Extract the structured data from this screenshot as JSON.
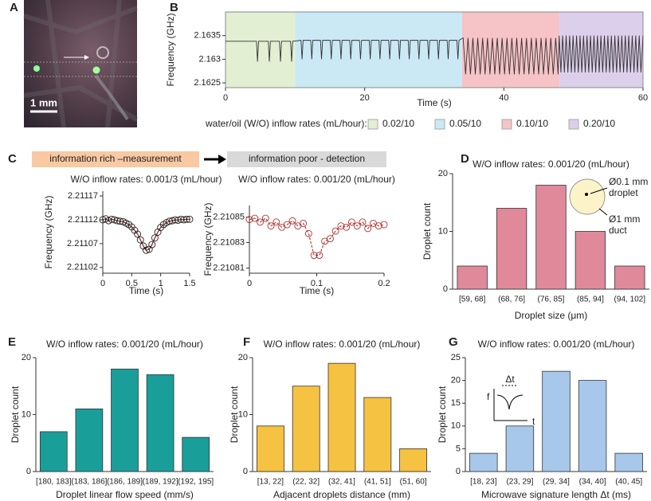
{
  "image_panel": {
    "label": "A",
    "scale_bar": "1 mm"
  },
  "panel_header": {
    "label": "C",
    "left": "information rich –measurement",
    "right": "information poor - detection"
  },
  "chart_data": [
    {
      "type": "line",
      "label": "B",
      "xlabel": "Time (s)",
      "ylabel": "Frequency (GHz)",
      "xlim": [
        0,
        60
      ],
      "xticks": [
        0,
        20,
        40,
        60
      ],
      "ylim": [
        2.1624,
        2.164
      ],
      "yticks": [
        2.1625,
        2.163,
        2.1635
      ],
      "color": "#333333",
      "legend_title": "water/oil (W/O) inflow rates (mL/hour):",
      "regions": [
        {
          "start": 0,
          "end": 10,
          "color": "#e2efd3",
          "label": "0.02/10"
        },
        {
          "start": 10,
          "end": 34,
          "color": "#cbe9f5",
          "label": "0.05/10"
        },
        {
          "start": 34,
          "end": 48,
          "color": "#f6c3c6",
          "label": "0.10/10"
        },
        {
          "start": 48,
          "end": 60,
          "color": "#dccfeb",
          "label": "0.20/10"
        }
      ],
      "x": [
        0,
        4.45,
        4.6,
        4.75,
        6.15,
        6.3,
        6.45,
        7.75,
        7.9,
        8.05,
        9.35,
        9.5,
        9.65,
        10.85,
        11,
        11.15,
        12.25,
        12.4,
        12.55,
        13.65,
        13.8,
        13.95,
        15.05,
        15.2,
        15.35,
        16.45,
        16.6,
        16.75,
        17.85,
        18,
        18.15,
        19.25,
        19.4,
        19.55,
        20.65,
        20.8,
        20.95,
        22.05,
        22.2,
        22.35,
        23.45,
        23.6,
        23.75,
        24.85,
        25,
        25.15,
        26.25,
        26.4,
        26.55,
        27.65,
        27.8,
        27.95,
        29.05,
        29.2,
        29.35,
        30.45,
        30.6,
        30.75,
        31.85,
        32,
        32.15,
        33.25,
        33.4,
        33.55,
        34.15,
        34.5,
        34.85,
        35.2,
        35.55,
        35.9,
        36.25,
        36.6,
        36.95,
        37.3,
        37.65,
        38,
        38.35,
        38.7,
        39.05,
        39.4,
        39.75,
        40.1,
        40.45,
        40.8,
        41.15,
        41.5,
        41.85,
        42.2,
        42.55,
        42.9,
        43.25,
        43.6,
        43.95,
        44.3,
        44.65,
        45,
        45.35,
        45.7,
        46.05,
        46.4,
        46.75,
        47.1,
        47.45,
        47.8,
        47.95,
        48.2,
        48.45,
        48.7,
        48.95,
        49.2,
        49.45,
        49.7,
        49.95,
        50.2,
        50.45,
        50.7,
        50.95,
        51.2,
        51.45,
        51.7,
        51.95,
        52.2,
        52.45,
        52.7,
        52.95,
        53.2,
        53.45,
        53.7,
        53.95,
        54.2,
        54.45,
        54.7,
        54.95,
        55.2,
        55.45,
        55.7,
        55.95,
        56.2,
        56.45,
        56.7,
        56.95,
        57.2,
        57.45,
        57.7,
        57.95,
        58.2,
        58.45,
        58.7,
        58.95,
        59.2,
        59.45,
        59.7,
        60
      ],
      "values": [
        2.16338,
        2.16338,
        2.16295,
        2.16338,
        2.16338,
        2.16295,
        2.16338,
        2.16338,
        2.16295,
        2.16338,
        2.16338,
        2.16295,
        2.16338,
        2.1634,
        2.163,
        2.1634,
        2.1634,
        2.163,
        2.1634,
        2.1634,
        2.163,
        2.1634,
        2.1634,
        2.163,
        2.1634,
        2.1634,
        2.163,
        2.1634,
        2.1634,
        2.163,
        2.1634,
        2.1634,
        2.163,
        2.1634,
        2.1634,
        2.163,
        2.1634,
        2.1634,
        2.163,
        2.1634,
        2.1634,
        2.163,
        2.1634,
        2.1634,
        2.163,
        2.1634,
        2.1634,
        2.163,
        2.1634,
        2.1634,
        2.163,
        2.1634,
        2.1634,
        2.163,
        2.1634,
        2.1634,
        2.163,
        2.1634,
        2.1634,
        2.163,
        2.1634,
        2.1634,
        2.163,
        2.1634,
        2.16345,
        2.16268,
        2.16345,
        2.16268,
        2.16345,
        2.16268,
        2.16345,
        2.16268,
        2.16345,
        2.16268,
        2.16345,
        2.16268,
        2.16345,
        2.16268,
        2.16345,
        2.16268,
        2.16345,
        2.16268,
        2.16345,
        2.16268,
        2.16345,
        2.16268,
        2.16345,
        2.16268,
        2.16345,
        2.16268,
        2.16345,
        2.16268,
        2.16345,
        2.16268,
        2.16345,
        2.16268,
        2.16345,
        2.16268,
        2.16345,
        2.16268,
        2.16345,
        2.16268,
        2.16345,
        2.16268,
        2.1635,
        2.16272,
        2.1635,
        2.16272,
        2.1635,
        2.16272,
        2.1635,
        2.16272,
        2.1635,
        2.16272,
        2.1635,
        2.16272,
        2.1635,
        2.16272,
        2.1635,
        2.16272,
        2.1635,
        2.16272,
        2.1635,
        2.16272,
        2.1635,
        2.16272,
        2.1635,
        2.16272,
        2.1635,
        2.16272,
        2.1635,
        2.16272,
        2.1635,
        2.16272,
        2.1635,
        2.16272,
        2.1635,
        2.16272,
        2.1635,
        2.16272,
        2.1635,
        2.16272,
        2.1635,
        2.16272,
        2.1635,
        2.16272,
        2.1635,
        2.16272,
        2.1635,
        2.16272,
        2.1635,
        2.16272,
        2.1635
      ]
    },
    {
      "type": "line",
      "title": "W/O inflow rates: 0.001/3 (mL/hour)",
      "xlabel": "Time (s)",
      "ylabel": "Frequency (GHz)",
      "xlim": [
        0,
        1.5
      ],
      "xticks": [
        0,
        0.5,
        1,
        1.5
      ],
      "ylim": [
        2.211008,
        2.21118
      ],
      "yticks": [
        2.21102,
        2.21107,
        2.21112,
        2.21117
      ],
      "color": "#8b1a1a",
      "marker_color": "#222222",
      "markers": true,
      "line_style": "solid",
      "x": [
        0,
        0.05,
        0.1,
        0.15,
        0.2,
        0.25,
        0.3,
        0.35,
        0.4,
        0.45,
        0.5,
        0.55,
        0.6,
        0.65,
        0.7,
        0.75,
        0.8,
        0.85,
        0.9,
        0.95,
        1,
        1.05,
        1.1,
        1.15,
        1.2,
        1.25,
        1.3,
        1.35,
        1.4,
        1.45,
        1.5
      ],
      "values": [
        2.21112,
        2.211122,
        2.211118,
        2.211121,
        2.21112,
        2.211118,
        2.211117,
        2.211116,
        2.211113,
        2.21111,
        2.211105,
        2.211098,
        2.21109,
        2.211078,
        2.211065,
        2.211056,
        2.211058,
        2.211068,
        2.211082,
        2.211094,
        2.211104,
        2.21111,
        2.211114,
        2.211117,
        2.211118,
        2.21112,
        2.211119,
        2.211121,
        2.21112,
        2.211121,
        2.211121
      ]
    },
    {
      "type": "line",
      "title": "W/O inflow rates: 0.001/20 (mL/hour)",
      "xlabel": "Time (s)",
      "ylabel": "Frequency (GHz)",
      "xlim": [
        0,
        0.2
      ],
      "xticks": [
        0,
        0.1,
        0.2
      ],
      "ylim": [
        2.210806,
        2.210859
      ],
      "yticks": [
        2.21081,
        2.21083,
        2.21085
      ],
      "color": "#c0392b",
      "marker_color": "#b03030",
      "markers": true,
      "line_style": "dashed",
      "x": [
        0,
        0.008,
        0.016,
        0.024,
        0.032,
        0.04,
        0.048,
        0.056,
        0.064,
        0.072,
        0.08,
        0.088,
        0.096,
        0.104,
        0.112,
        0.12,
        0.128,
        0.136,
        0.144,
        0.152,
        0.16,
        0.168,
        0.176,
        0.184,
        0.192,
        0.2
      ],
      "values": [
        2.210848,
        2.210849,
        2.210846,
        2.210849,
        2.210843,
        2.210846,
        2.210842,
        2.210844,
        2.210847,
        2.210843,
        2.210845,
        2.210837,
        2.21082,
        2.21082,
        2.210831,
        2.210833,
        2.210839,
        2.210843,
        2.210842,
        2.210846,
        2.210843,
        2.210846,
        2.210841,
        2.210845,
        2.210843,
        2.210844
      ]
    },
    {
      "type": "bar",
      "label": "D",
      "title": "W/O inflow rates: 0.001/20 (mL/hour)",
      "xlabel": "Droplet size (μm)",
      "ylabel": "Droplet count",
      "categories": [
        "[59, 68]",
        "(68, 76]",
        "(76, 85]",
        "(85, 94]",
        "(94, 102]"
      ],
      "values": [
        4,
        14,
        18,
        10,
        4
      ],
      "ylim": [
        0,
        20
      ],
      "yticks": [
        0,
        10,
        20
      ],
      "color": "#e0899a",
      "annotations": [
        "Ø0.1 mm",
        "droplet",
        "Ø1 mm",
        "duct"
      ]
    },
    {
      "type": "bar",
      "label": "E",
      "title": "W/O inflow rates: 0.001/20 (mL/hour)",
      "xlabel": "Droplet linear flow speed (mm/s)",
      "ylabel": "Droplet count",
      "categories": [
        "[180, 183]",
        "(183, 186]",
        "(186, 189]",
        "(189, 192]",
        "(192, 195]"
      ],
      "values": [
        7,
        11,
        18,
        17,
        6
      ],
      "ylim": [
        0,
        20
      ],
      "yticks": [
        0,
        10,
        20
      ],
      "color": "#1a9e9a"
    },
    {
      "type": "bar",
      "label": "F",
      "title": "W/O inflow rates: 0.001/20 (mL/hour)",
      "xlabel": "Adjacent droplets distance (mm)",
      "ylabel": "Droplet count",
      "categories": [
        "[13, 22]",
        "(22, 32]",
        "(32, 41]",
        "(41, 51]",
        "(51, 60]"
      ],
      "values": [
        8,
        15,
        19,
        13,
        4
      ],
      "ylim": [
        0,
        20
      ],
      "yticks": [
        0,
        10,
        20
      ],
      "color": "#f5c242"
    },
    {
      "type": "bar",
      "label": "G",
      "title": "W/O inflow rates: 0.001/20 (mL/hour)",
      "xlabel": "Microwave signature length Δt (ms)",
      "ylabel": "Droplet count",
      "categories": [
        "[18, 23]",
        "(23, 29]",
        "(29, 34]",
        "(34, 40]",
        "(40, 45]"
      ],
      "values": [
        4,
        10,
        22,
        20,
        4
      ],
      "ylim": [
        0,
        25
      ],
      "yticks": [
        0,
        5,
        10,
        15,
        20,
        25
      ],
      "color": "#a7c8ea",
      "annotations": [
        "f",
        "Δt",
        "t"
      ]
    }
  ]
}
